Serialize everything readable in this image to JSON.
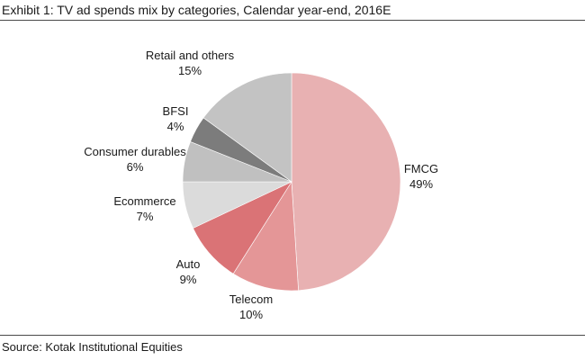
{
  "title": "Exhibit 1: TV ad spends mix by categories, Calendar year-end, 2016E",
  "source": "Source: Kotak Institutional Equities",
  "chart_data": {
    "type": "pie",
    "title": "Exhibit 1: TV ad spends mix by categories, Calendar year-end, 2016E",
    "slices": [
      {
        "label": "FMCG",
        "value": 49,
        "value_label": "49%",
        "color": "#e8b1b2"
      },
      {
        "label": "Telecom",
        "value": 10,
        "value_label": "10%",
        "color": "#e49697"
      },
      {
        "label": "Auto",
        "value": 9,
        "value_label": "9%",
        "color": "#da7376"
      },
      {
        "label": "Ecommerce",
        "value": 7,
        "value_label": "7%",
        "color": "#dbdbdb"
      },
      {
        "label": "Consumer durables",
        "value": 6,
        "value_label": "6%",
        "color": "#c0c0c0"
      },
      {
        "label": "BFSI",
        "value": 4,
        "value_label": "4%",
        "color": "#7c7c7c"
      },
      {
        "label": "Retail and others",
        "value": 15,
        "value_label": "15%",
        "color": "#c3c3c3"
      }
    ],
    "start_angle": "12 o'clock",
    "direction": "clockwise",
    "legend": "none"
  }
}
